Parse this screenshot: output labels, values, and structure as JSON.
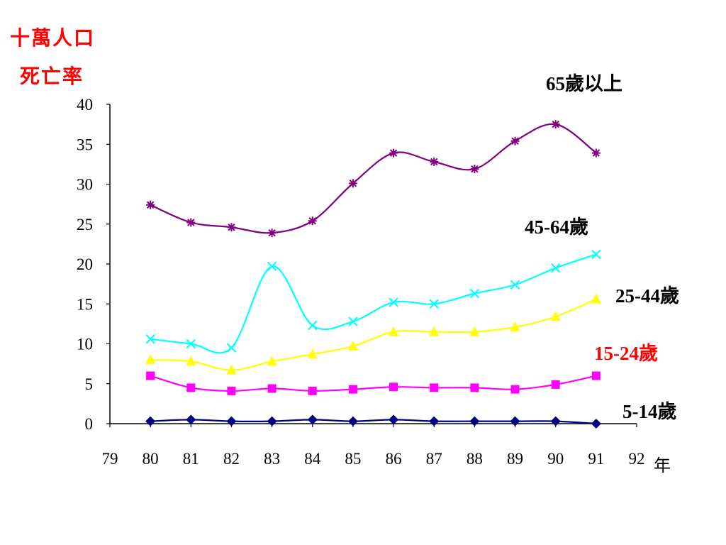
{
  "chart_data": {
    "type": "line",
    "ylabel_lines": [
      "十萬人口",
      "死亡率"
    ],
    "xlabel": "年",
    "x_ticks": [
      "79",
      "80",
      "81",
      "82",
      "83",
      "84",
      "85",
      "86",
      "87",
      "88",
      "89",
      "90",
      "91",
      "92"
    ],
    "y_ticks": [
      "0",
      "5",
      "10",
      "15",
      "20",
      "25",
      "30",
      "35",
      "40"
    ],
    "xlim": [
      79,
      92
    ],
    "ylim": [
      0,
      40
    ],
    "x": [
      80,
      81,
      82,
      83,
      84,
      85,
      86,
      87,
      88,
      89,
      90,
      91
    ],
    "series": [
      {
        "name": "65歲以上",
        "color": "#800080",
        "marker": "asterisk",
        "values": [
          27.4,
          25.2,
          24.6,
          23.9,
          25.4,
          30.1,
          33.9,
          32.8,
          31.9,
          35.4,
          37.5,
          33.9
        ]
      },
      {
        "name": "45-64歲",
        "color": "#00ffff",
        "marker": "x",
        "values": [
          10.6,
          10.0,
          9.5,
          19.7,
          12.3,
          12.8,
          15.2,
          15.0,
          16.3,
          17.4,
          19.5,
          21.2
        ]
      },
      {
        "name": "25-44歲",
        "color": "#ffff00",
        "marker": "triangle",
        "values": [
          8.0,
          7.8,
          6.7,
          7.8,
          8.7,
          9.7,
          11.5,
          11.5,
          11.5,
          12.1,
          13.4,
          15.6
        ]
      },
      {
        "name": "15-24歲",
        "color": "#ff00ff",
        "marker": "square",
        "values": [
          6.0,
          4.5,
          4.1,
          4.4,
          4.1,
          4.3,
          4.6,
          4.5,
          4.5,
          4.3,
          4.9,
          6.0
        ]
      },
      {
        "name": "5-14歲",
        "color": "#000080",
        "marker": "diamond",
        "values": [
          0.3,
          0.5,
          0.3,
          0.3,
          0.5,
          0.3,
          0.5,
          0.3,
          0.3,
          0.3,
          0.3,
          0.0
        ]
      }
    ],
    "series_labels": [
      {
        "text": "65歲以上",
        "color": "#000000"
      },
      {
        "text": "45-64歲",
        "color": "#000000"
      },
      {
        "text": "25-44歲",
        "color": "#000000"
      },
      {
        "text": "15-24歲",
        "color": "#ff0000"
      },
      {
        "text": "5-14歲",
        "color": "#000000"
      }
    ],
    "grid": false,
    "legend": "inline labels at right"
  }
}
